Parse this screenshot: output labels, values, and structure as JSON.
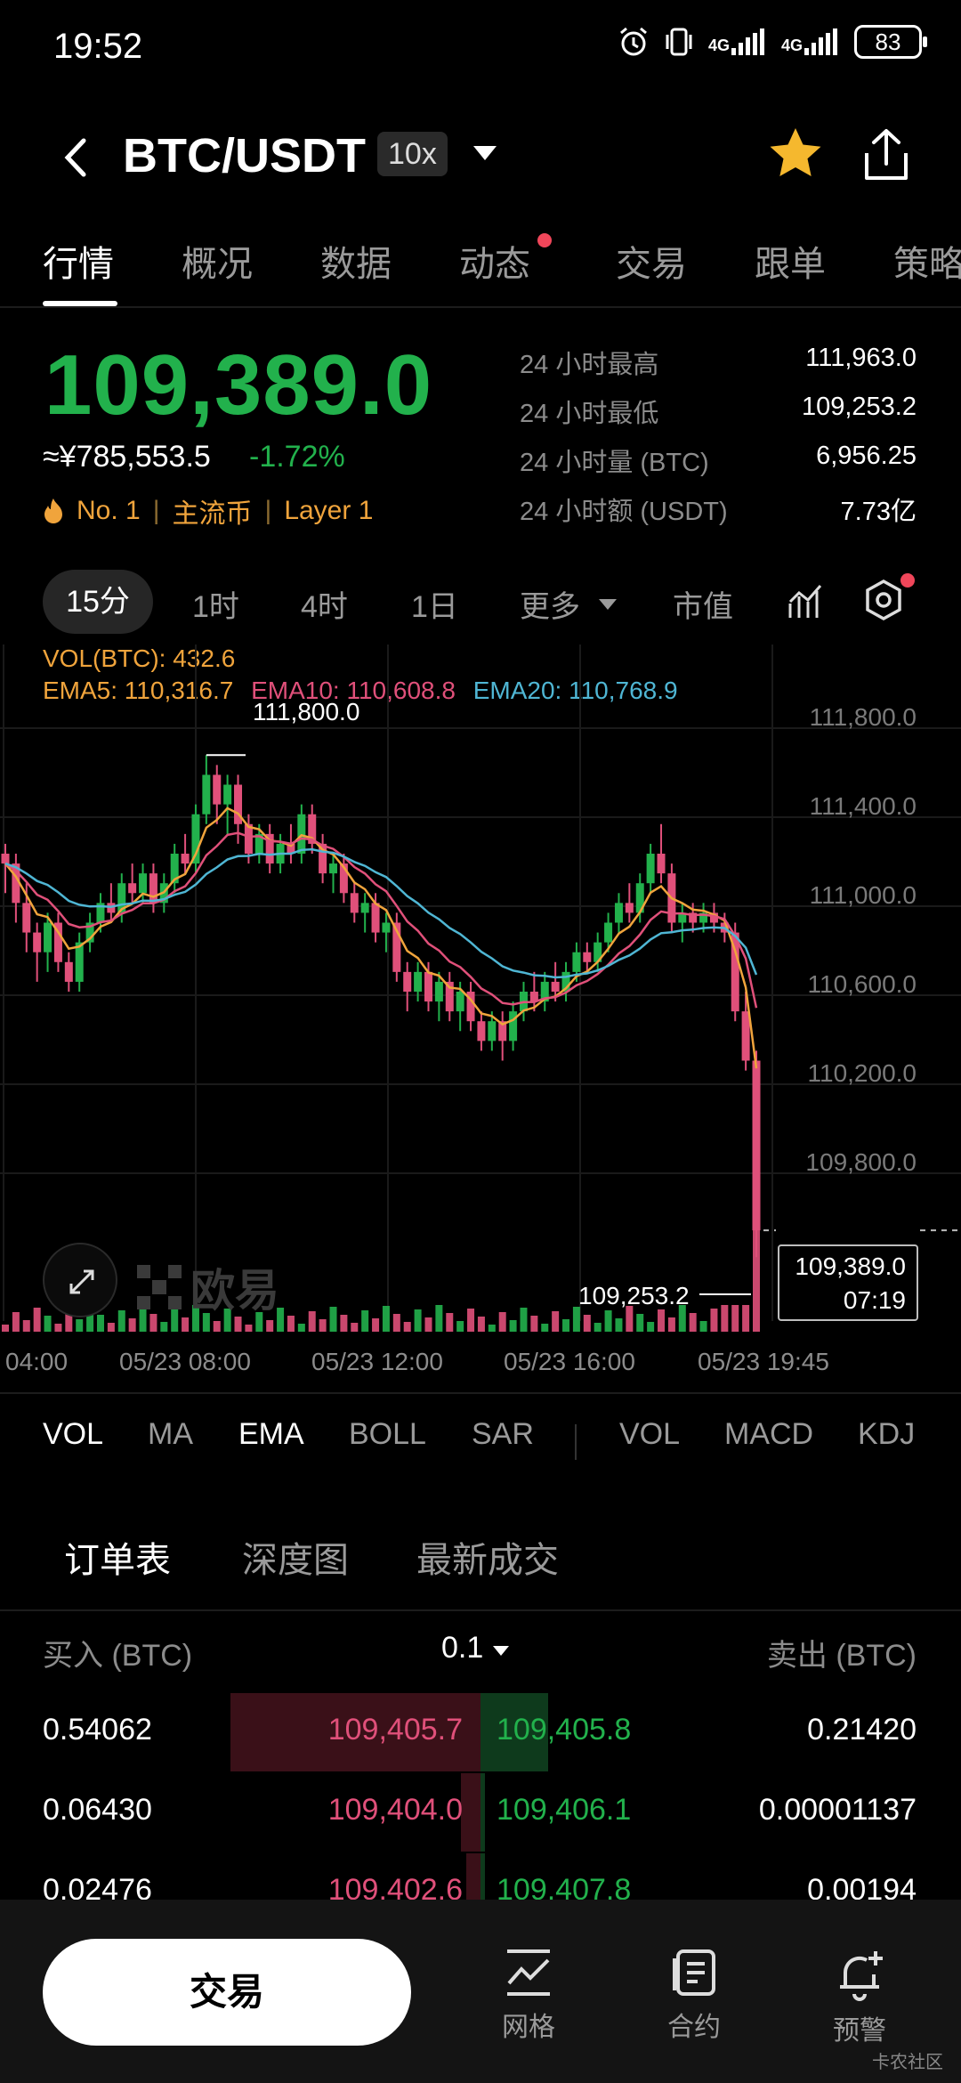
{
  "status": {
    "time": "19:52",
    "battery": "83",
    "net1": "4G",
    "net2": "4G"
  },
  "header": {
    "pair": "BTC/USDT",
    "leverage": "10x"
  },
  "tabs": [
    "行情",
    "概况",
    "数据",
    "动态",
    "交易",
    "跟单",
    "策略"
  ],
  "price": {
    "last": "109,389.0",
    "cny": "≈¥785,553.5",
    "change": "-1.72%",
    "tag1": "No. 1",
    "tag2": "主流币",
    "tag3": "Layer 1",
    "sep": "|"
  },
  "stats": [
    {
      "label": "24 小时最高",
      "value": "111,963.0"
    },
    {
      "label": "24 小时最低",
      "value": "109,253.2"
    },
    {
      "label": "24 小时量 (BTC)",
      "value": "6,956.25"
    },
    {
      "label": "24 小时额 (USDT)",
      "value": "7.73亿"
    }
  ],
  "intervals": [
    "15分",
    "1时",
    "4时",
    "1日",
    "更多",
    "市值"
  ],
  "chart_legend": {
    "vol": "VOL(BTC): 432.6",
    "ema5": "EMA5: 110,316.7",
    "ema10": "EMA10: 110,608.8",
    "ema20": "EMA20: 110,768.9"
  },
  "chart_data": {
    "type": "candlestick",
    "y_ticks": [
      "111,800.0",
      "111,400.0",
      "111,000.0",
      "110,600.0",
      "110,200.0",
      "109,800.0"
    ],
    "ylim": [
      109200,
      112000
    ],
    "x_ticks": [
      "04:00",
      "05/23 08:00",
      "05/23 12:00",
      "05/23 16:00",
      "05/23 19:45"
    ],
    "high_marker": "111,800.0",
    "low_marker": "109,253.2",
    "current_price": "109,389.0",
    "countdown": "07:19",
    "colors": {
      "up": "#22b14c",
      "down": "#e0507a",
      "ema5": "#f0a43c",
      "ema10": "#e0507a",
      "ema20": "#4fb6d4"
    },
    "candles": [
      [
        111300,
        111250,
        111350,
        111100
      ],
      [
        111250,
        111050,
        111300,
        110950
      ],
      [
        111050,
        110900,
        111150,
        110800
      ],
      [
        110900,
        110800,
        110950,
        110650
      ],
      [
        110800,
        110950,
        111000,
        110700
      ],
      [
        110950,
        110750,
        111000,
        110700
      ],
      [
        110750,
        110650,
        110800,
        110600
      ],
      [
        110650,
        110850,
        110900,
        110600
      ],
      [
        110850,
        110950,
        111000,
        110800
      ],
      [
        110950,
        111050,
        111100,
        110900
      ],
      [
        111050,
        111000,
        111150,
        110950
      ],
      [
        111000,
        111150,
        111200,
        110950
      ],
      [
        111150,
        111100,
        111250,
        111050
      ],
      [
        111100,
        111200,
        111250,
        111050
      ],
      [
        111200,
        111050,
        111250,
        111000
      ],
      [
        111050,
        111150,
        111200,
        111000
      ],
      [
        111150,
        111300,
        111350,
        111100
      ],
      [
        111300,
        111250,
        111400,
        111200
      ],
      [
        111250,
        111500,
        111550,
        111200
      ],
      [
        111500,
        111700,
        111800,
        111450
      ],
      [
        111700,
        111550,
        111750,
        111450
      ],
      [
        111550,
        111650,
        111700,
        111400
      ],
      [
        111650,
        111450,
        111700,
        111350
      ],
      [
        111450,
        111300,
        111500,
        111250
      ],
      [
        111300,
        111400,
        111450,
        111250
      ],
      [
        111400,
        111250,
        111450,
        111200
      ],
      [
        111250,
        111350,
        111400,
        111200
      ],
      [
        111350,
        111300,
        111450,
        111250
      ],
      [
        111300,
        111500,
        111550,
        111250
      ],
      [
        111500,
        111350,
        111550,
        111300
      ],
      [
        111350,
        111200,
        111400,
        111150
      ],
      [
        111200,
        111250,
        111300,
        111100
      ],
      [
        111250,
        111100,
        111300,
        111050
      ],
      [
        111100,
        111000,
        111150,
        110950
      ],
      [
        111000,
        111050,
        111100,
        110900
      ],
      [
        111050,
        110900,
        111100,
        110850
      ],
      [
        110900,
        110950,
        111000,
        110800
      ],
      [
        110950,
        110700,
        111000,
        110650
      ],
      [
        110700,
        110600,
        110750,
        110500
      ],
      [
        110600,
        110700,
        110750,
        110550
      ],
      [
        110700,
        110550,
        110750,
        110500
      ],
      [
        110550,
        110650,
        110700,
        110450
      ],
      [
        110650,
        110500,
        110700,
        110450
      ],
      [
        110500,
        110600,
        110650,
        110400
      ],
      [
        110600,
        110450,
        110650,
        110400
      ],
      [
        110450,
        110350,
        110500,
        110300
      ],
      [
        110350,
        110450,
        110500,
        110300
      ],
      [
        110450,
        110350,
        110500,
        110250
      ],
      [
        110350,
        110500,
        110550,
        110300
      ],
      [
        110500,
        110600,
        110650,
        110450
      ],
      [
        110600,
        110550,
        110700,
        110500
      ],
      [
        110550,
        110650,
        110700,
        110500
      ],
      [
        110650,
        110600,
        110750,
        110550
      ],
      [
        110600,
        110700,
        110750,
        110550
      ],
      [
        110700,
        110800,
        110850,
        110650
      ],
      [
        110800,
        110750,
        110850,
        110700
      ],
      [
        110750,
        110850,
        110900,
        110700
      ],
      [
        110850,
        110950,
        111000,
        110800
      ],
      [
        110950,
        111050,
        111100,
        110900
      ],
      [
        111050,
        111000,
        111150,
        110950
      ],
      [
        111000,
        111150,
        111200,
        110950
      ],
      [
        111150,
        111300,
        111350,
        111100
      ],
      [
        111300,
        111200,
        111450,
        111150
      ],
      [
        111200,
        110950,
        111250,
        110900
      ],
      [
        110950,
        111000,
        111050,
        110850
      ],
      [
        111000,
        110950,
        111050,
        110900
      ],
      [
        110950,
        111000,
        111050,
        110900
      ],
      [
        111000,
        110950,
        111050,
        110900
      ],
      [
        110950,
        110900,
        111000,
        110850
      ],
      [
        110900,
        110500,
        110950,
        110450
      ],
      [
        110500,
        110250,
        110600,
        110200
      ],
      [
        110250,
        109389,
        110300,
        109253
      ]
    ]
  },
  "indicators": [
    "VOL",
    "MA",
    "EMA",
    "BOLL",
    "SAR",
    "VOL",
    "MACD",
    "KDJ"
  ],
  "orderbook": {
    "tabs": [
      "订单表",
      "深度图",
      "最新成交"
    ],
    "buy_header": "买入 (BTC)",
    "precision": "0.1",
    "sell_header": "卖出 (BTC)",
    "rows": [
      {
        "bid_qty": "0.54062",
        "bid": "109,405.7",
        "ask": "109,405.8",
        "ask_qty": "0.21420",
        "bid_depth": 0.52,
        "ask_depth": 0.14
      },
      {
        "bid_qty": "0.06430",
        "bid": "109,404.0",
        "ask": "109,406.1",
        "ask_qty": "0.00001137",
        "bid_depth": 0.04,
        "ask_depth": 0.01
      },
      {
        "bid_qty": "0.02476",
        "bid": "109,402.6",
        "ask": "109,407.8",
        "ask_qty": "0.00194",
        "bid_depth": 0.03,
        "ask_depth": 0.01
      }
    ]
  },
  "bottom": {
    "trade": "交易",
    "grid": "网格",
    "contract": "合约",
    "alert": "预警"
  },
  "watermark": "欧易",
  "footer": "卡农社区"
}
